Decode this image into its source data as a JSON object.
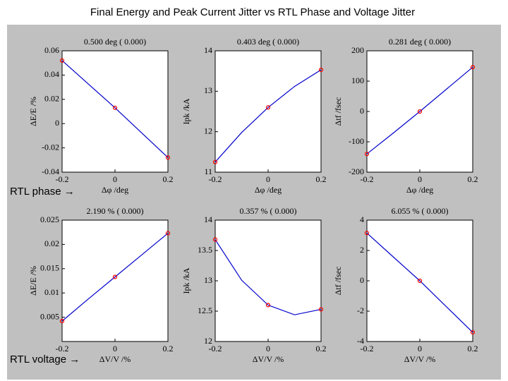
{
  "title": "Final Energy and Peak Current Jitter vs RTL Phase and Voltage Jitter",
  "row_labels": [
    "RTL phase →",
    "RTL voltage →"
  ],
  "chart_data": [
    {
      "type": "line",
      "title": "0.500 deg ( 0.000)",
      "x_label": "Δφ /deg",
      "y_label": "ΔE/E /%",
      "x": [
        -0.2,
        -0.1,
        0,
        0.1,
        0.2
      ],
      "xlim": [
        -0.2,
        0.2
      ],
      "xticks": [
        -0.2,
        0,
        0.2
      ],
      "ylim": [
        -0.04,
        0.06
      ],
      "yticks": [
        -0.04,
        -0.02,
        0,
        0.02,
        0.04,
        0.06
      ],
      "series": [
        {
          "color": "#0000cc",
          "values": [
            0.052,
            0.0325,
            0.013,
            -0.0075,
            -0.028
          ]
        },
        {
          "color": "#ff0000",
          "marker": "circle",
          "values": [
            0.052,
            null,
            0.013,
            null,
            -0.028
          ]
        }
      ]
    },
    {
      "type": "line",
      "title": "0.403 deg ( 0.000)",
      "x_label": "Δφ /deg",
      "y_label": "Ipk /kA",
      "x": [
        -0.2,
        -0.1,
        0,
        0.1,
        0.2
      ],
      "xlim": [
        -0.2,
        0.2
      ],
      "xticks": [
        -0.2,
        0,
        0.2
      ],
      "ylim": [
        11,
        14
      ],
      "yticks": [
        11,
        12,
        13,
        14
      ],
      "series": [
        {
          "color": "#0000cc",
          "values": [
            11.25,
            11.98,
            12.6,
            13.12,
            13.53
          ]
        },
        {
          "color": "#ff0000",
          "marker": "circle",
          "values": [
            11.25,
            null,
            12.6,
            null,
            13.53
          ]
        }
      ]
    },
    {
      "type": "line",
      "title": "0.281 deg ( 0.000)",
      "x_label": "Δφ /deg",
      "y_label": "Δtf /fsec",
      "x": [
        -0.2,
        -0.1,
        0,
        0.1,
        0.2
      ],
      "xlim": [
        -0.2,
        0.2
      ],
      "xticks": [
        -0.2,
        0,
        0.2
      ],
      "ylim": [
        -200,
        200
      ],
      "yticks": [
        -200,
        -100,
        0,
        100,
        200
      ],
      "series": [
        {
          "color": "#0000cc",
          "values": [
            -140,
            -71,
            0,
            73,
            146
          ]
        },
        {
          "color": "#ff0000",
          "marker": "circle",
          "values": [
            -140,
            null,
            0,
            null,
            146
          ]
        }
      ]
    },
    {
      "type": "line",
      "title": "2.190 % ( 0.000)",
      "x_label": "ΔV/V /%",
      "y_label": "ΔE/E /%",
      "x": [
        -0.2,
        -0.1,
        0,
        0.1,
        0.2
      ],
      "xlim": [
        -0.2,
        0.2
      ],
      "xticks": [
        -0.2,
        0,
        0.2
      ],
      "ylim": [
        0,
        0.025
      ],
      "yticks": [
        0.005,
        0.01,
        0.015,
        0.02,
        0.025
      ],
      "series": [
        {
          "color": "#0000cc",
          "values": [
            0.0042,
            0.0088,
            0.0133,
            0.0178,
            0.0223
          ]
        },
        {
          "color": "#ff0000",
          "marker": "circle",
          "values": [
            0.0042,
            null,
            0.0133,
            null,
            0.0223
          ]
        }
      ]
    },
    {
      "type": "line",
      "title": "0.357 % ( 0.000)",
      "x_label": "ΔV/V /%",
      "y_label": "Ipk /kA",
      "x": [
        -0.2,
        -0.1,
        0,
        0.1,
        0.2
      ],
      "xlim": [
        -0.2,
        0.2
      ],
      "xticks": [
        -0.2,
        0,
        0.2
      ],
      "ylim": [
        12,
        14
      ],
      "yticks": [
        12,
        12.5,
        13,
        13.5,
        14
      ],
      "series": [
        {
          "color": "#0000cc",
          "values": [
            13.68,
            13.01,
            12.6,
            12.44,
            12.53
          ]
        },
        {
          "color": "#ff0000",
          "marker": "circle",
          "values": [
            13.68,
            null,
            12.6,
            null,
            12.53
          ]
        }
      ]
    },
    {
      "type": "line",
      "title": "6.055 % ( 0.000)",
      "x_label": "ΔV/V /%",
      "y_label": "Δtf /fsec",
      "x": [
        -0.2,
        -0.1,
        0,
        0.1,
        0.2
      ],
      "xlim": [
        -0.2,
        0.2
      ],
      "xticks": [
        -0.2,
        0,
        0.2
      ],
      "ylim": [
        -4,
        4
      ],
      "yticks": [
        -4,
        -2,
        0,
        2,
        4
      ],
      "series": [
        {
          "color": "#0000cc",
          "values": [
            3.15,
            1.57,
            0,
            -1.7,
            -3.4
          ]
        },
        {
          "color": "#ff0000",
          "marker": "circle",
          "values": [
            3.15,
            null,
            0,
            null,
            -3.4
          ]
        }
      ]
    }
  ]
}
